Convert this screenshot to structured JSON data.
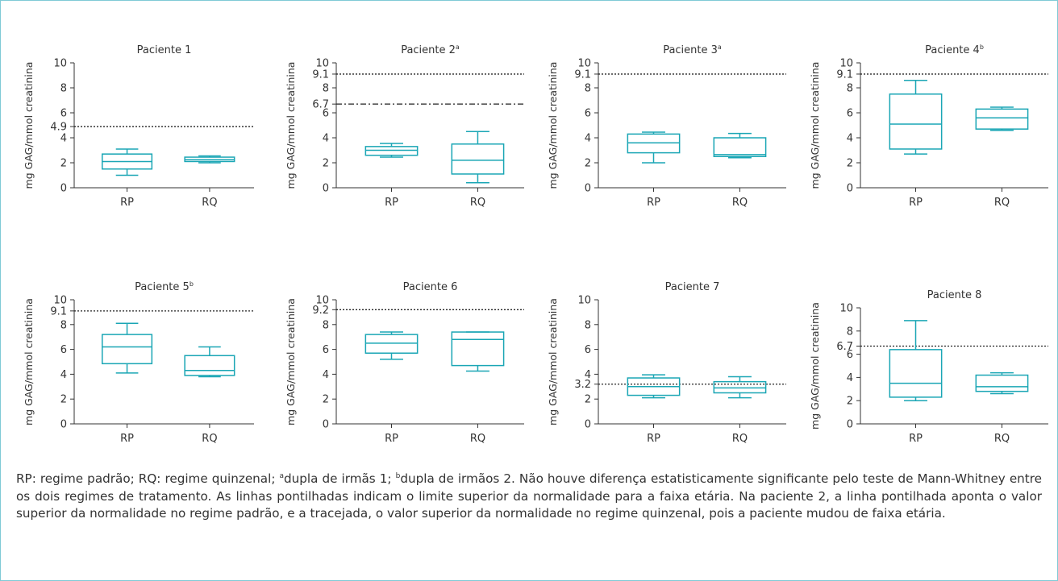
{
  "colors": {
    "box": "#1aa6b5",
    "axis": "#333333",
    "reference": "#222222",
    "frame": "#7fcad6"
  },
  "y_axis_label": "mg GAG/mmol creatinina",
  "chart_data": [
    {
      "type": "box",
      "title": "Paciente 1",
      "sup": "",
      "categories": [
        "RP",
        "RQ"
      ],
      "ylim": [
        0,
        10
      ],
      "yticks": [
        "0",
        "2",
        "4",
        "6",
        "8",
        "10"
      ],
      "boxes": [
        {
          "min": 1.0,
          "q1": 1.5,
          "median": 2.1,
          "q3": 2.7,
          "max": 3.1
        },
        {
          "min": 2.0,
          "q1": 2.1,
          "median": 2.25,
          "q3": 2.45,
          "max": 2.55
        }
      ],
      "reference_lines": [
        {
          "value": 4.9,
          "label": "4.9",
          "style": "dotted"
        }
      ]
    },
    {
      "type": "box",
      "title": "Paciente 2",
      "sup": "a",
      "categories": [
        "RP",
        "RQ"
      ],
      "ylim": [
        0,
        10
      ],
      "yticks": [
        "0",
        "2",
        "4",
        "6",
        "8",
        "10"
      ],
      "boxes": [
        {
          "min": 2.45,
          "q1": 2.6,
          "median": 3.0,
          "q3": 3.3,
          "max": 3.55
        },
        {
          "min": 0.4,
          "q1": 1.1,
          "median": 2.2,
          "q3": 3.5,
          "max": 4.5
        }
      ],
      "reference_lines": [
        {
          "value": 9.1,
          "label": "9.1",
          "style": "dotted"
        },
        {
          "value": 6.7,
          "label": "6.7",
          "style": "dashdot"
        }
      ]
    },
    {
      "type": "box",
      "title": "Paciente 3",
      "sup": "a",
      "categories": [
        "RP",
        "RQ"
      ],
      "ylim": [
        0,
        10
      ],
      "yticks": [
        "0",
        "2",
        "4",
        "6",
        "8",
        "10"
      ],
      "boxes": [
        {
          "min": 2.0,
          "q1": 2.8,
          "median": 3.6,
          "q3": 4.3,
          "max": 4.45
        },
        {
          "min": 2.4,
          "q1": 2.5,
          "median": 2.65,
          "q3": 4.0,
          "max": 4.35
        }
      ],
      "reference_lines": [
        {
          "value": 9.1,
          "label": "9.1",
          "style": "dotted"
        }
      ]
    },
    {
      "type": "box",
      "title": "Paciente 4",
      "sup": "b",
      "categories": [
        "RP",
        "RQ"
      ],
      "ylim": [
        0,
        10
      ],
      "yticks": [
        "0",
        "2",
        "4",
        "6",
        "8",
        "10"
      ],
      "boxes": [
        {
          "min": 2.7,
          "q1": 3.1,
          "median": 5.1,
          "q3": 7.5,
          "max": 8.6
        },
        {
          "min": 4.6,
          "q1": 4.7,
          "median": 5.6,
          "q3": 6.3,
          "max": 6.45
        }
      ],
      "reference_lines": [
        {
          "value": 9.1,
          "label": "9.1",
          "style": "dotted"
        }
      ]
    },
    {
      "type": "box",
      "title": "Paciente 5",
      "sup": "b",
      "categories": [
        "RP",
        "RQ"
      ],
      "ylim": [
        0,
        10
      ],
      "yticks": [
        "0",
        "2",
        "4",
        "6",
        "8",
        "10"
      ],
      "boxes": [
        {
          "min": 4.1,
          "q1": 4.85,
          "median": 6.2,
          "q3": 7.2,
          "max": 8.1
        },
        {
          "min": 3.8,
          "q1": 3.9,
          "median": 4.3,
          "q3": 5.5,
          "max": 6.2
        }
      ],
      "reference_lines": [
        {
          "value": 9.1,
          "label": "9.1",
          "style": "dotted"
        }
      ]
    },
    {
      "type": "box",
      "title": "Paciente 6",
      "sup": "",
      "categories": [
        "RP",
        "RQ"
      ],
      "ylim": [
        0,
        10
      ],
      "yticks": [
        "0",
        "2",
        "4",
        "6",
        "8",
        "10"
      ],
      "boxes": [
        {
          "min": 5.2,
          "q1": 5.7,
          "median": 6.5,
          "q3": 7.2,
          "max": 7.4
        },
        {
          "min": 4.25,
          "q1": 4.7,
          "median": 6.8,
          "q3": 7.4,
          "max": 7.4
        }
      ],
      "reference_lines": [
        {
          "value": 9.2,
          "label": "9.2",
          "style": "dotted"
        }
      ]
    },
    {
      "type": "box",
      "title": "Paciente 7",
      "sup": "",
      "categories": [
        "RP",
        "RQ"
      ],
      "ylim": [
        0,
        10
      ],
      "yticks": [
        "0",
        "2",
        "4",
        "6",
        "8",
        "10"
      ],
      "boxes": [
        {
          "min": 2.1,
          "q1": 2.3,
          "median": 3.0,
          "q3": 3.7,
          "max": 3.95
        },
        {
          "min": 2.1,
          "q1": 2.5,
          "median": 2.9,
          "q3": 3.4,
          "max": 3.8
        }
      ],
      "reference_lines": [
        {
          "value": 3.2,
          "label": "3.2",
          "style": "dotted"
        }
      ]
    },
    {
      "type": "box",
      "title": "Paciente 8",
      "sup": "",
      "categories": [
        "RP",
        "RQ"
      ],
      "ylim": [
        0,
        10
      ],
      "yticks": [
        "0",
        "2",
        "4",
        "6",
        "8",
        "10"
      ],
      "boxes": [
        {
          "min": 2.0,
          "q1": 2.3,
          "median": 3.5,
          "q3": 6.4,
          "max": 8.9
        },
        {
          "min": 2.6,
          "q1": 2.8,
          "median": 3.2,
          "q3": 4.2,
          "max": 4.4
        }
      ],
      "reference_lines": [
        {
          "value": 6.7,
          "label": "6.7",
          "style": "dotted"
        }
      ]
    }
  ],
  "caption": {
    "part1": "RP: regime padrão; RQ: regime quinzenal; ",
    "sup_a": "a",
    "part2": "dupla de irmãs 1; ",
    "sup_b": "b",
    "part3": "dupla de irmãos 2. Não houve diferença estatisticamente significante pelo teste de Mann-Whitney entre os dois regimes de tratamento. As linhas pontilhadas indicam o limite superior da normalidade para a faixa etária. Na paciente 2, a linha pontilhada aponta o valor superior da normalidade no regime padrão, e a tracejada, o valor superior da normalidade no regime quinzenal, pois a paciente mudou de faixa etária."
  }
}
